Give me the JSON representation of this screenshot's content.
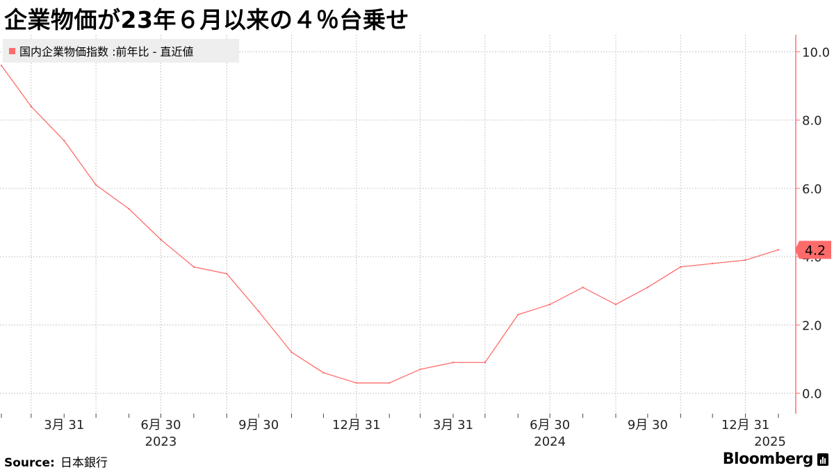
{
  "title": "企業物価が23年６月以来の４％台乗せ",
  "legend": {
    "label": "国内企業物価指数 :前年比 - 直近値"
  },
  "source": {
    "label": "Source:",
    "value": "日本銀行"
  },
  "brand": {
    "name": "Bloomberg"
  },
  "colors": {
    "series": "#ff6b6b",
    "axis": "#ff6b6b",
    "grid": "#c8c8c8"
  },
  "chart_data": {
    "type": "line",
    "title": "企業物価が23年６月以来の４％台乗せ",
    "series": [
      {
        "name": "国内企業物価指数 :前年比 - 直近値",
        "x": [
          "2023-01-31",
          "2023-02-28",
          "2023-03-31",
          "2023-04-30",
          "2023-05-31",
          "2023-06-30",
          "2023-07-31",
          "2023-08-31",
          "2023-09-30",
          "2023-10-31",
          "2023-11-30",
          "2023-12-31",
          "2024-01-31",
          "2024-02-29",
          "2024-03-31",
          "2024-04-30",
          "2024-05-31",
          "2024-06-30",
          "2024-07-31",
          "2024-08-31",
          "2024-09-30",
          "2024-10-31",
          "2024-11-30",
          "2024-12-31",
          "2025-01-31"
        ],
        "values": [
          9.6,
          8.4,
          7.4,
          6.1,
          5.4,
          4.5,
          3.7,
          3.5,
          2.4,
          1.2,
          0.6,
          0.3,
          0.3,
          0.7,
          0.9,
          0.9,
          2.3,
          2.6,
          3.1,
          2.6,
          3.1,
          3.7,
          3.8,
          3.9,
          4.2
        ]
      }
    ],
    "last_value_label": "4.2",
    "x_tick_labels": [
      {
        "date": "2023-03-31",
        "label": "3月 31"
      },
      {
        "date": "2023-06-30",
        "label": "6月 30"
      },
      {
        "date": "2023-09-30",
        "label": "9月 30"
      },
      {
        "date": "2023-12-31",
        "label": "12月 31"
      },
      {
        "date": "2024-03-31",
        "label": "3月 31"
      },
      {
        "date": "2024-06-30",
        "label": "6月 30"
      },
      {
        "date": "2024-09-30",
        "label": "9月 30"
      },
      {
        "date": "2024-12-31",
        "label": "12月 31"
      }
    ],
    "year_labels": [
      {
        "date": "2023-06-30",
        "label": "2023"
      },
      {
        "date": "2024-06-30",
        "label": "2024"
      },
      {
        "date": "2025-01-31",
        "label": "2025"
      }
    ],
    "y_ticks": [
      0,
      2,
      4,
      6,
      8,
      10
    ],
    "y_tick_labels": [
      "0.0",
      "2.0",
      "4.0",
      "6.0",
      "8.0",
      "10.0"
    ],
    "ylim": [
      -0.6,
      10.5
    ],
    "y_axis_position": "right",
    "grid": true,
    "legend_position": "top-left"
  }
}
